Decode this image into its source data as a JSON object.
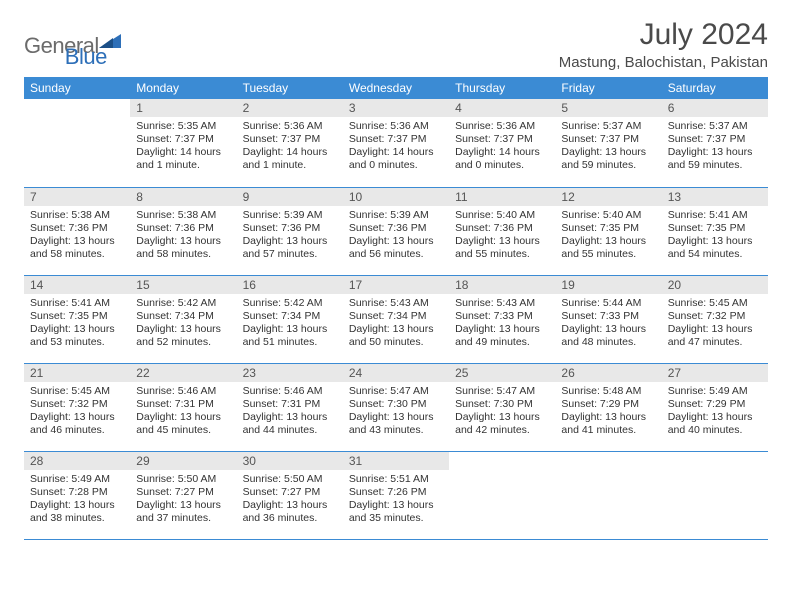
{
  "logo": {
    "general": "General",
    "blue": "Blue"
  },
  "title": "July 2024",
  "location": "Mastung, Balochistan, Pakistan",
  "colors": {
    "header_bg": "#3b8bd4",
    "header_fg": "#ffffff",
    "daynum_bg": "#e8e8e8",
    "border": "#3b8bd4",
    "logo_general": "#6b6b6b",
    "logo_blue": "#2d6fb8"
  },
  "weekdays": [
    "Sunday",
    "Monday",
    "Tuesday",
    "Wednesday",
    "Thursday",
    "Friday",
    "Saturday"
  ],
  "weeks": [
    [
      {
        "n": "",
        "sr": "",
        "ss": "",
        "dl": ""
      },
      {
        "n": "1",
        "sr": "Sunrise: 5:35 AM",
        "ss": "Sunset: 7:37 PM",
        "dl": "Daylight: 14 hours and 1 minute."
      },
      {
        "n": "2",
        "sr": "Sunrise: 5:36 AM",
        "ss": "Sunset: 7:37 PM",
        "dl": "Daylight: 14 hours and 1 minute."
      },
      {
        "n": "3",
        "sr": "Sunrise: 5:36 AM",
        "ss": "Sunset: 7:37 PM",
        "dl": "Daylight: 14 hours and 0 minutes."
      },
      {
        "n": "4",
        "sr": "Sunrise: 5:36 AM",
        "ss": "Sunset: 7:37 PM",
        "dl": "Daylight: 14 hours and 0 minutes."
      },
      {
        "n": "5",
        "sr": "Sunrise: 5:37 AM",
        "ss": "Sunset: 7:37 PM",
        "dl": "Daylight: 13 hours and 59 minutes."
      },
      {
        "n": "6",
        "sr": "Sunrise: 5:37 AM",
        "ss": "Sunset: 7:37 PM",
        "dl": "Daylight: 13 hours and 59 minutes."
      }
    ],
    [
      {
        "n": "7",
        "sr": "Sunrise: 5:38 AM",
        "ss": "Sunset: 7:36 PM",
        "dl": "Daylight: 13 hours and 58 minutes."
      },
      {
        "n": "8",
        "sr": "Sunrise: 5:38 AM",
        "ss": "Sunset: 7:36 PM",
        "dl": "Daylight: 13 hours and 58 minutes."
      },
      {
        "n": "9",
        "sr": "Sunrise: 5:39 AM",
        "ss": "Sunset: 7:36 PM",
        "dl": "Daylight: 13 hours and 57 minutes."
      },
      {
        "n": "10",
        "sr": "Sunrise: 5:39 AM",
        "ss": "Sunset: 7:36 PM",
        "dl": "Daylight: 13 hours and 56 minutes."
      },
      {
        "n": "11",
        "sr": "Sunrise: 5:40 AM",
        "ss": "Sunset: 7:36 PM",
        "dl": "Daylight: 13 hours and 55 minutes."
      },
      {
        "n": "12",
        "sr": "Sunrise: 5:40 AM",
        "ss": "Sunset: 7:35 PM",
        "dl": "Daylight: 13 hours and 55 minutes."
      },
      {
        "n": "13",
        "sr": "Sunrise: 5:41 AM",
        "ss": "Sunset: 7:35 PM",
        "dl": "Daylight: 13 hours and 54 minutes."
      }
    ],
    [
      {
        "n": "14",
        "sr": "Sunrise: 5:41 AM",
        "ss": "Sunset: 7:35 PM",
        "dl": "Daylight: 13 hours and 53 minutes."
      },
      {
        "n": "15",
        "sr": "Sunrise: 5:42 AM",
        "ss": "Sunset: 7:34 PM",
        "dl": "Daylight: 13 hours and 52 minutes."
      },
      {
        "n": "16",
        "sr": "Sunrise: 5:42 AM",
        "ss": "Sunset: 7:34 PM",
        "dl": "Daylight: 13 hours and 51 minutes."
      },
      {
        "n": "17",
        "sr": "Sunrise: 5:43 AM",
        "ss": "Sunset: 7:34 PM",
        "dl": "Daylight: 13 hours and 50 minutes."
      },
      {
        "n": "18",
        "sr": "Sunrise: 5:43 AM",
        "ss": "Sunset: 7:33 PM",
        "dl": "Daylight: 13 hours and 49 minutes."
      },
      {
        "n": "19",
        "sr": "Sunrise: 5:44 AM",
        "ss": "Sunset: 7:33 PM",
        "dl": "Daylight: 13 hours and 48 minutes."
      },
      {
        "n": "20",
        "sr": "Sunrise: 5:45 AM",
        "ss": "Sunset: 7:32 PM",
        "dl": "Daylight: 13 hours and 47 minutes."
      }
    ],
    [
      {
        "n": "21",
        "sr": "Sunrise: 5:45 AM",
        "ss": "Sunset: 7:32 PM",
        "dl": "Daylight: 13 hours and 46 minutes."
      },
      {
        "n": "22",
        "sr": "Sunrise: 5:46 AM",
        "ss": "Sunset: 7:31 PM",
        "dl": "Daylight: 13 hours and 45 minutes."
      },
      {
        "n": "23",
        "sr": "Sunrise: 5:46 AM",
        "ss": "Sunset: 7:31 PM",
        "dl": "Daylight: 13 hours and 44 minutes."
      },
      {
        "n": "24",
        "sr": "Sunrise: 5:47 AM",
        "ss": "Sunset: 7:30 PM",
        "dl": "Daylight: 13 hours and 43 minutes."
      },
      {
        "n": "25",
        "sr": "Sunrise: 5:47 AM",
        "ss": "Sunset: 7:30 PM",
        "dl": "Daylight: 13 hours and 42 minutes."
      },
      {
        "n": "26",
        "sr": "Sunrise: 5:48 AM",
        "ss": "Sunset: 7:29 PM",
        "dl": "Daylight: 13 hours and 41 minutes."
      },
      {
        "n": "27",
        "sr": "Sunrise: 5:49 AM",
        "ss": "Sunset: 7:29 PM",
        "dl": "Daylight: 13 hours and 40 minutes."
      }
    ],
    [
      {
        "n": "28",
        "sr": "Sunrise: 5:49 AM",
        "ss": "Sunset: 7:28 PM",
        "dl": "Daylight: 13 hours and 38 minutes."
      },
      {
        "n": "29",
        "sr": "Sunrise: 5:50 AM",
        "ss": "Sunset: 7:27 PM",
        "dl": "Daylight: 13 hours and 37 minutes."
      },
      {
        "n": "30",
        "sr": "Sunrise: 5:50 AM",
        "ss": "Sunset: 7:27 PM",
        "dl": "Daylight: 13 hours and 36 minutes."
      },
      {
        "n": "31",
        "sr": "Sunrise: 5:51 AM",
        "ss": "Sunset: 7:26 PM",
        "dl": "Daylight: 13 hours and 35 minutes."
      },
      {
        "n": "",
        "sr": "",
        "ss": "",
        "dl": ""
      },
      {
        "n": "",
        "sr": "",
        "ss": "",
        "dl": ""
      },
      {
        "n": "",
        "sr": "",
        "ss": "",
        "dl": ""
      }
    ]
  ]
}
